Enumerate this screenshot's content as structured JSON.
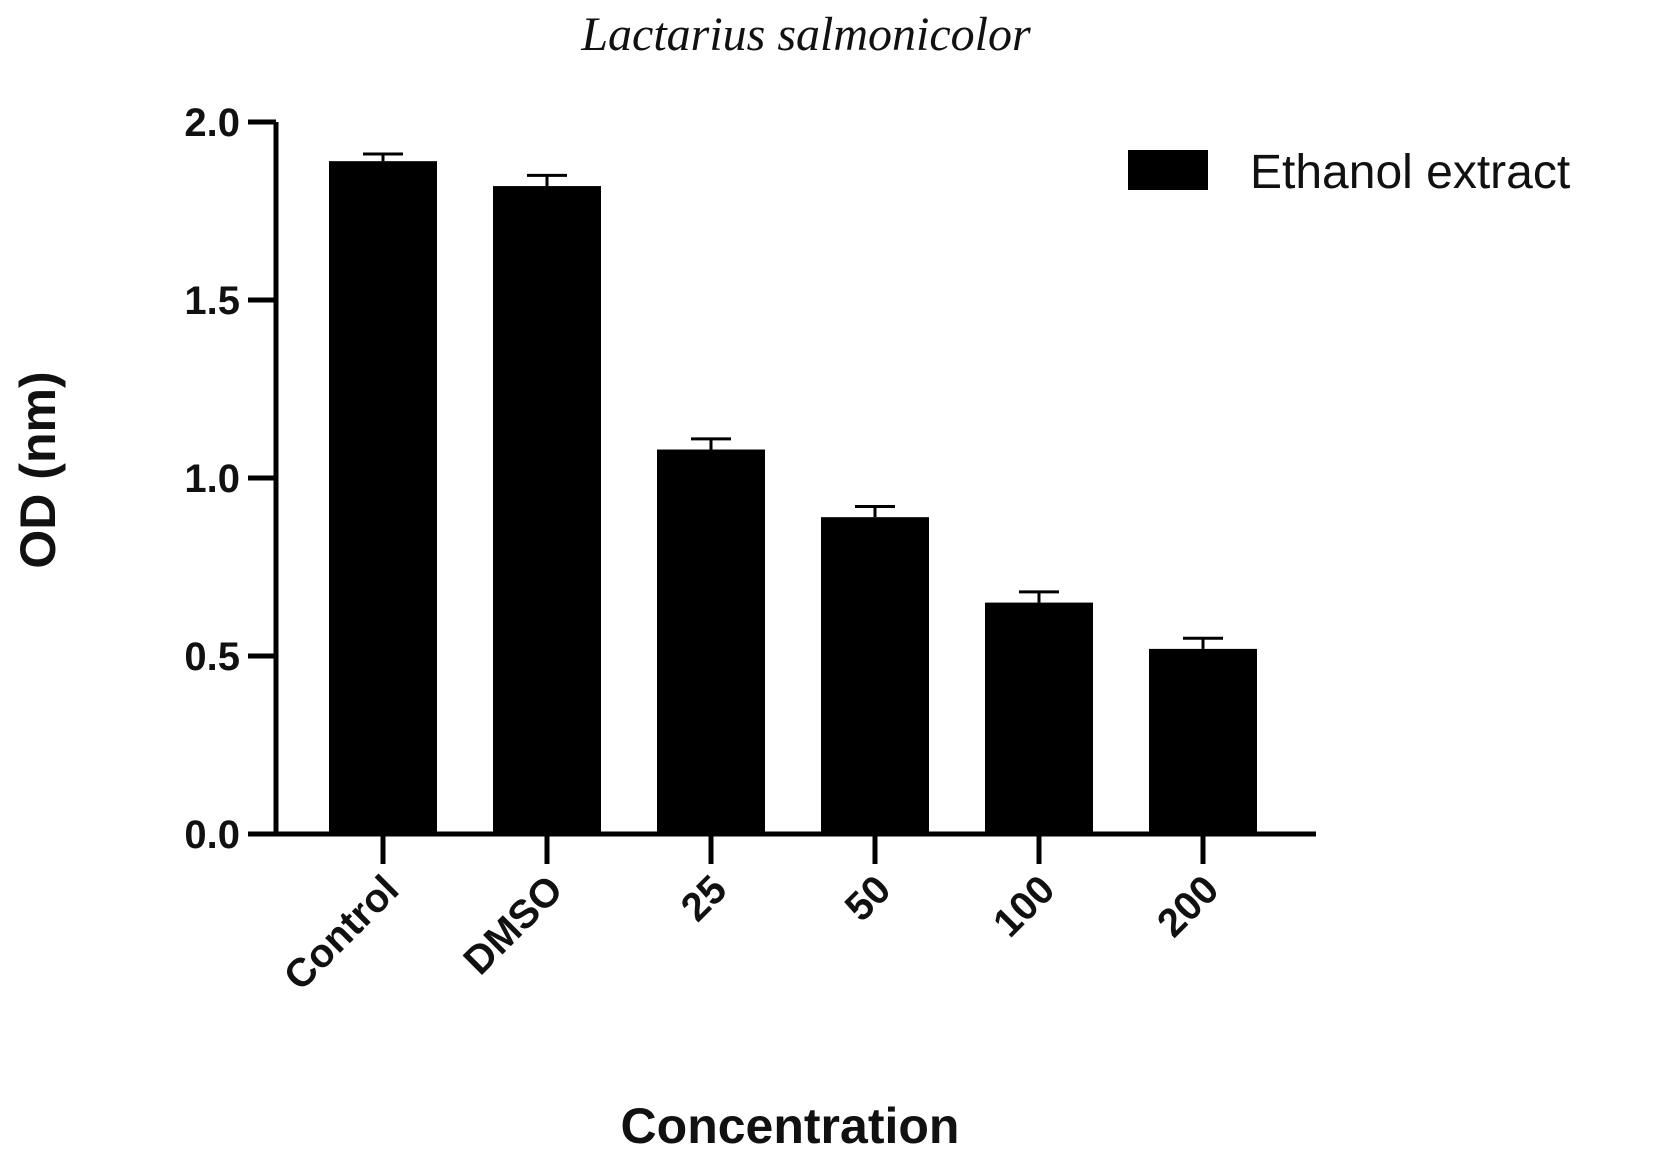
{
  "chart_data": {
    "type": "bar",
    "title": "Lactarius salmonicolor",
    "xlabel": "Concentration",
    "ylabel": "OD (nm)",
    "ylim": [
      0.0,
      2.0
    ],
    "yticks": [
      "0.0",
      "0.5",
      "1.0",
      "1.5",
      "2.0"
    ],
    "categories": [
      "Control",
      "DMSO",
      "25",
      "50",
      "100",
      "200"
    ],
    "series": [
      {
        "name": "Ethanol extract",
        "values": [
          1.89,
          1.82,
          1.08,
          0.89,
          0.65,
          0.52
        ],
        "errors": [
          0.02,
          0.03,
          0.03,
          0.03,
          0.03,
          0.03
        ],
        "color": "#000000"
      }
    ],
    "legend_position": "top-right",
    "grid": false
  }
}
